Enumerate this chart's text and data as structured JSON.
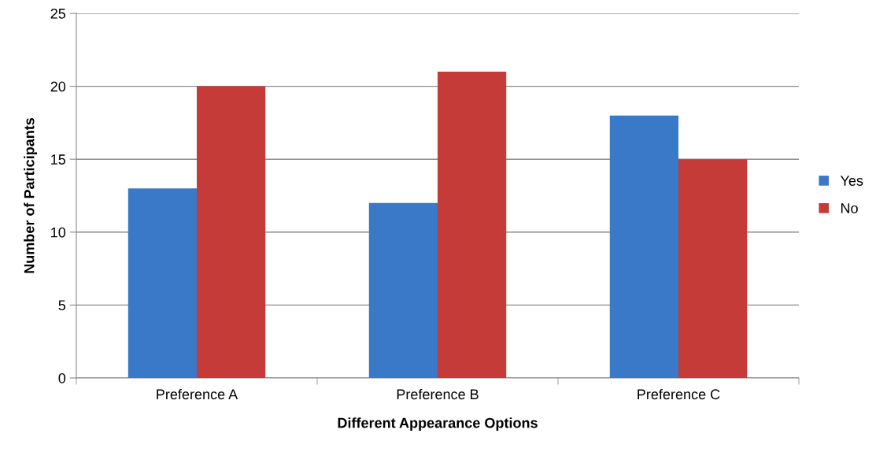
{
  "chart_data": {
    "type": "bar",
    "xlabel": "Different Appearance Options",
    "ylabel": "Number of Participants",
    "categories": [
      "Preference A",
      "Preference B",
      "Preference C"
    ],
    "series": [
      {
        "name": "Yes",
        "color": "#3a78c8",
        "values": [
          13,
          12,
          18
        ]
      },
      {
        "name": "No",
        "color": "#c53b37",
        "values": [
          20,
          21,
          15
        ]
      }
    ],
    "ylim": [
      0,
      25
    ],
    "yticks": [
      0,
      5,
      10,
      15,
      20,
      25
    ],
    "grid": "y",
    "legend": "right"
  }
}
